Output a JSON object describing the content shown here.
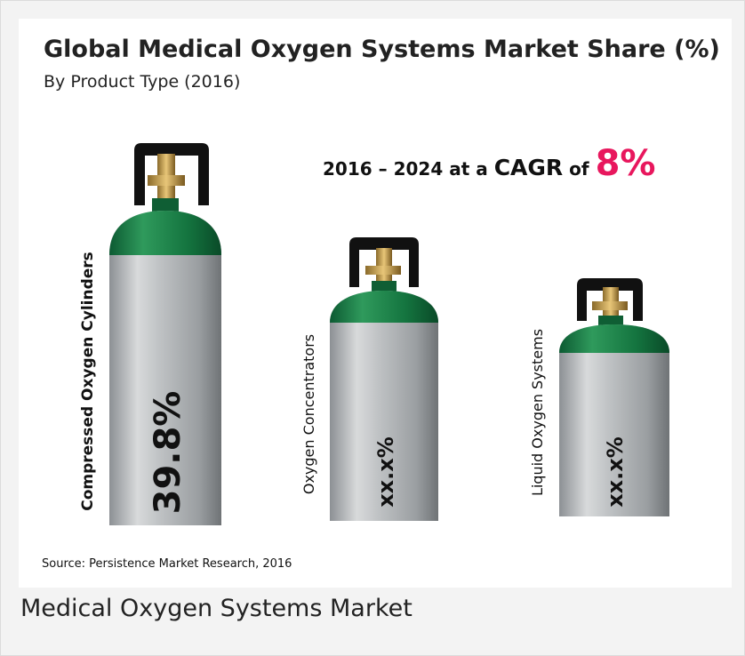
{
  "infographic": {
    "title": "Global Medical Oxygen Systems Market Share (%)",
    "subtitle": "By Product Type (2016)",
    "cagr": {
      "period": "2016 – 2024 at a",
      "label": "CAGR",
      "of": "of",
      "value": "8%"
    },
    "segments": [
      {
        "label": "Compressed Oxygen Cylinders",
        "share": "39.8%"
      },
      {
        "label": "Oxygen Concentrators",
        "share": "xx.x%"
      },
      {
        "label": "Liquid Oxygen Systems",
        "share": "xx.x%"
      }
    ],
    "source": "Source: Persistence Market Research, 2016"
  },
  "caption": "Medical Oxygen Systems Market"
}
